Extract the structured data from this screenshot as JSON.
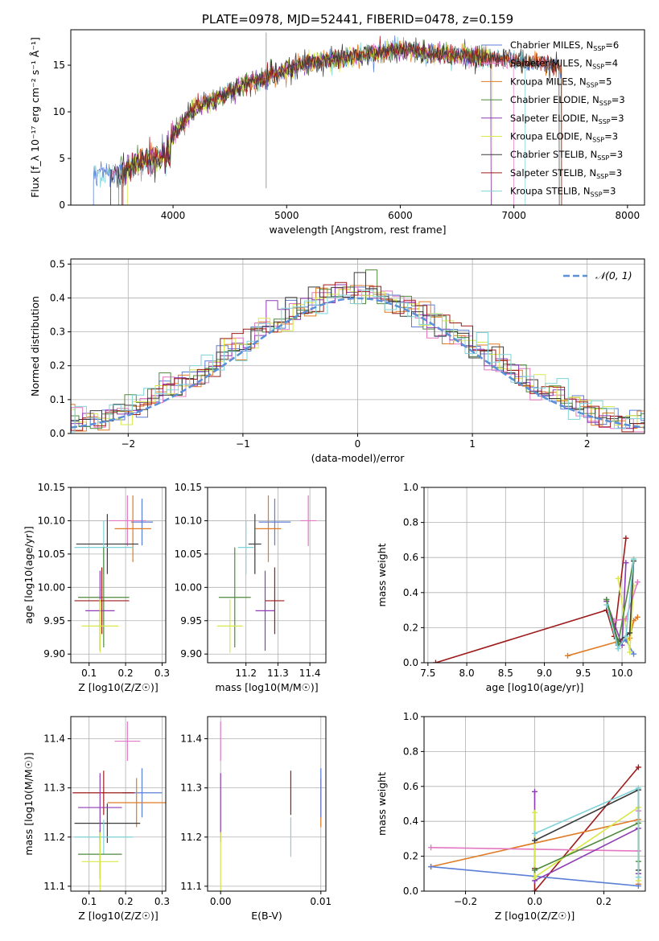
{
  "chart_data": [
    {
      "type": "line",
      "title": "PLATE=0978, MJD=52441, FIBERID=0478, z=0.159",
      "xlabel": "wavelength [Angstrom, rest frame]",
      "ylabel": "Flux [f_λ 10⁻¹⁷ erg cm⁻² s⁻¹ Å⁻¹]",
      "xlim": [
        3100,
        8150
      ],
      "ylim": [
        0,
        18.8
      ],
      "xticks": [
        4000,
        5000,
        6000,
        7000,
        8000
      ],
      "yticks": [
        0,
        5,
        10,
        15
      ],
      "grid": false,
      "legend_position": "top-right",
      "series": [
        {
          "name": "Chabrier MILES, N_SSP=6",
          "color": "#5b7fd6"
        },
        {
          "name": "Salpeter MILES, N_SSP=4",
          "color": "#e377c2"
        },
        {
          "name": "Kroupa MILES, N_SSP=5",
          "color": "#e07b24"
        },
        {
          "name": "Chabrier ELODIE, N_SSP=3",
          "color": "#4f8a3d"
        },
        {
          "name": "Salpeter ELODIE, N_SSP=3",
          "color": "#8e3bb5"
        },
        {
          "name": "Kroupa ELODIE, N_SSP=3",
          "color": "#d8e84a"
        },
        {
          "name": "Chabrier STELIB, N_SSP=3",
          "color": "#3a3a3a"
        },
        {
          "name": "Salpeter STELIB, N_SSP=3",
          "color": "#9e1a1a"
        },
        {
          "name": "Kroupa STELIB, N_SSP=3",
          "color": "#7fd3d8"
        }
      ],
      "continuum": {
        "x": [
          3300,
          3500,
          3700,
          3900,
          4000,
          4200,
          4400,
          4600,
          4800,
          5000,
          5200,
          5400,
          5600,
          5800,
          6000,
          6200,
          6500,
          6800,
          7100,
          7400
        ],
        "y": [
          3.3,
          3.4,
          4.5,
          5.2,
          7.5,
          10.5,
          11.5,
          12.8,
          13.5,
          14.5,
          15.4,
          15.6,
          16.0,
          16.3,
          16.7,
          16.3,
          16.0,
          15.8,
          15.3,
          15.0
        ]
      }
    },
    {
      "type": "bar",
      "xlabel": "(data-model)/error",
      "ylabel": "Normed distribution",
      "xlim": [
        -2.5,
        2.5
      ],
      "ylim": [
        0,
        0.515
      ],
      "xticks": [
        -2,
        -1,
        0,
        1,
        2
      ],
      "yticks": [
        0.0,
        0.1,
        0.2,
        0.3,
        0.4,
        0.5
      ],
      "grid": true,
      "legend": "𝒩(0, 1)",
      "legend_position": "top-right",
      "reference_color": "#5b8fd6"
    },
    {
      "type": "scatter",
      "xlabel": "Z [log10(Z/Z☉)]",
      "ylabel": "age  [log10(age/yr)]",
      "xlim": [
        0.05,
        0.31
      ],
      "ylim": [
        9.887,
        10.15
      ],
      "xticks": [
        0.1,
        0.2,
        0.3
      ],
      "yticks": [
        9.9,
        9.95,
        10.0,
        10.05,
        10.1,
        10.15
      ],
      "grid": true,
      "points": [
        {
          "x": 0.205,
          "y": 10.1,
          "xerr": 0.05,
          "yerr": 0.038,
          "color": "#e377c2"
        },
        {
          "x": 0.245,
          "y": 10.098,
          "xerr": 0.03,
          "yerr": 0.035,
          "color": "#5b7fd6"
        },
        {
          "x": 0.22,
          "y": 10.088,
          "xerr": 0.05,
          "yerr": 0.05,
          "color": "#e07b24"
        },
        {
          "x": 0.15,
          "y": 10.065,
          "xerr": 0.085,
          "yerr": 0.045,
          "color": "#3a3a3a"
        },
        {
          "x": 0.14,
          "y": 10.06,
          "xerr": 0.08,
          "yerr": 0.04,
          "color": "#7fd3d8"
        },
        {
          "x": 0.14,
          "y": 9.985,
          "xerr": 0.07,
          "yerr": 0.075,
          "color": "#4f8a3d"
        },
        {
          "x": 0.135,
          "y": 9.98,
          "xerr": 0.075,
          "yerr": 0.05,
          "color": "#9e1a1a"
        },
        {
          "x": 0.13,
          "y": 9.965,
          "xerr": 0.04,
          "yerr": 0.06,
          "color": "#8e3bb5"
        },
        {
          "x": 0.13,
          "y": 9.942,
          "xerr": 0.05,
          "yerr": 0.04,
          "color": "#d8e84a"
        }
      ]
    },
    {
      "type": "scatter",
      "xlabel": "mass [log10(M/M☉)]",
      "ylabel": "",
      "xlim": [
        11.08,
        11.45
      ],
      "ylim": [
        9.887,
        10.15
      ],
      "xticks": [
        11.2,
        11.3,
        11.4
      ],
      "yticks": [
        9.9,
        9.95,
        10.0,
        10.05,
        10.1,
        10.15
      ],
      "grid": true,
      "points": [
        {
          "x": 11.395,
          "y": 10.1,
          "xerr": 0.025,
          "yerr": 0.038,
          "color": "#e377c2"
        },
        {
          "x": 11.29,
          "y": 10.098,
          "xerr": 0.05,
          "yerr": 0.035,
          "color": "#5b7fd6"
        },
        {
          "x": 11.27,
          "y": 10.088,
          "xerr": 0.04,
          "yerr": 0.05,
          "color": "#e07b24"
        },
        {
          "x": 11.228,
          "y": 10.065,
          "xerr": 0.02,
          "yerr": 0.045,
          "color": "#3a3a3a"
        },
        {
          "x": 11.2,
          "y": 10.06,
          "xerr": 0.025,
          "yerr": 0.04,
          "color": "#7fd3d8"
        },
        {
          "x": 11.165,
          "y": 9.985,
          "xerr": 0.05,
          "yerr": 0.075,
          "color": "#4f8a3d"
        },
        {
          "x": 11.29,
          "y": 9.98,
          "xerr": 0.03,
          "yerr": 0.05,
          "color": "#9e1a1a"
        },
        {
          "x": 11.26,
          "y": 9.965,
          "xerr": 0.03,
          "yerr": 0.06,
          "color": "#8e3bb5"
        },
        {
          "x": 11.15,
          "y": 9.942,
          "xerr": 0.04,
          "yerr": 0.04,
          "color": "#d8e84a"
        }
      ]
    },
    {
      "type": "line",
      "xlabel": "age  [log10(age/yr)]",
      "ylabel": "mass weight",
      "xlim": [
        7.45,
        10.3
      ],
      "ylim": [
        0,
        1.0
      ],
      "xticks": [
        7.5,
        8.0,
        8.5,
        9.0,
        9.5,
        10.0
      ],
      "yticks": [
        0.0,
        0.2,
        0.4,
        0.6,
        0.8,
        1.0
      ],
      "grid": true,
      "series": [
        {
          "color": "#9e1a1a",
          "x": [
            7.6,
            9.8,
            9.9,
            10.05
          ],
          "y": [
            0.0,
            0.3,
            0.15,
            0.71
          ]
        },
        {
          "color": "#e07b24",
          "x": [
            9.3,
            10.1,
            10.15,
            10.2
          ],
          "y": [
            0.04,
            0.14,
            0.24,
            0.26
          ]
        },
        {
          "color": "#5b7fd6",
          "x": [
            9.95,
            10.05,
            10.15
          ],
          "y": [
            0.1,
            0.13,
            0.05
          ]
        },
        {
          "color": "#8e3bb5",
          "x": [
            9.8,
            10.0,
            10.05
          ],
          "y": [
            0.35,
            0.1,
            0.57
          ]
        },
        {
          "color": "#d8e84a",
          "x": [
            9.95,
            10.1,
            10.15
          ],
          "y": [
            0.48,
            0.06,
            0.44
          ]
        },
        {
          "color": "#e377c2",
          "x": [
            9.9,
            10.05,
            10.2
          ],
          "y": [
            0.24,
            0.25,
            0.46
          ]
        },
        {
          "color": "#3a3a3a",
          "x": [
            9.8,
            9.95,
            10.1,
            10.15
          ],
          "y": [
            0.36,
            0.12,
            0.17,
            0.58
          ]
        },
        {
          "color": "#4f8a3d",
          "x": [
            9.8,
            9.95,
            10.15
          ],
          "y": [
            0.36,
            0.11,
            0.59
          ]
        },
        {
          "color": "#7fd3d8",
          "x": [
            9.8,
            9.95,
            10.05,
            10.15
          ],
          "y": [
            0.33,
            0.08,
            0.15,
            0.59
          ]
        }
      ]
    },
    {
      "type": "scatter",
      "xlabel": "Z [log10(Z/Z☉)]",
      "ylabel": "mass [log10(M/M☉)]",
      "xlim": [
        0.05,
        0.31
      ],
      "ylim": [
        11.09,
        11.445
      ],
      "xticks": [
        0.1,
        0.2,
        0.3
      ],
      "yticks": [
        11.1,
        11.2,
        11.3,
        11.4
      ],
      "grid": true,
      "points": [
        {
          "x": 0.205,
          "y": 11.395,
          "xerr": 0.035,
          "yerr": 0.04,
          "color": "#e377c2"
        },
        {
          "x": 0.245,
          "y": 11.29,
          "xerr": 0.055,
          "yerr": 0.05,
          "color": "#5b7fd6"
        },
        {
          "x": 0.23,
          "y": 11.27,
          "xerr": 0.08,
          "yerr": 0.05,
          "color": "#e07b24"
        },
        {
          "x": 0.15,
          "y": 11.228,
          "xerr": 0.09,
          "yerr": 0.04,
          "color": "#3a3a3a"
        },
        {
          "x": 0.14,
          "y": 11.2,
          "xerr": 0.08,
          "yerr": 0.035,
          "color": "#7fd3d8"
        },
        {
          "x": 0.13,
          "y": 11.165,
          "xerr": 0.06,
          "yerr": 0.05,
          "color": "#4f8a3d"
        },
        {
          "x": 0.14,
          "y": 11.29,
          "xerr": 0.085,
          "yerr": 0.045,
          "color": "#9e1a1a"
        },
        {
          "x": 0.13,
          "y": 11.26,
          "xerr": 0.06,
          "yerr": 0.07,
          "color": "#8e3bb5"
        },
        {
          "x": 0.13,
          "y": 11.15,
          "xerr": 0.05,
          "yerr": 0.06,
          "color": "#d8e84a"
        }
      ]
    },
    {
      "type": "scatter",
      "xlabel": "E(B-V)",
      "ylabel": "",
      "xlim": [
        -0.0013,
        0.0105
      ],
      "ylim": [
        11.09,
        11.445
      ],
      "xticks": [
        0.0,
        0.01
      ],
      "yticks": [
        11.1,
        11.2,
        11.3,
        11.4
      ],
      "grid": true,
      "points": [
        {
          "x": 0.0,
          "y": 11.395,
          "yerr": 0.04,
          "color": "#e377c2"
        },
        {
          "x": 0.0,
          "y": 11.26,
          "yerr": 0.07,
          "color": "#8e3bb5"
        },
        {
          "x": 0.0,
          "y": 11.15,
          "yerr": 0.06,
          "color": "#d8e84a"
        },
        {
          "x": 0.007,
          "y": 11.29,
          "yerr": 0.045,
          "color": "#9e1a1a"
        },
        {
          "x": 0.007,
          "y": 11.2,
          "yerr": 0.04,
          "color": "#7fd3d8"
        },
        {
          "x": 0.01,
          "y": 11.27,
          "yerr": 0.05,
          "color": "#e07b24"
        },
        {
          "x": 0.01,
          "y": 11.29,
          "yerr": 0.05,
          "color": "#5b7fd6"
        }
      ]
    },
    {
      "type": "line",
      "xlabel": "Z [log10(Z/Z☉)]",
      "ylabel": "mass weight",
      "xlim": [
        -0.32,
        0.32
      ],
      "ylim": [
        0,
        1.0
      ],
      "xticks": [
        -0.2,
        0.0,
        0.2
      ],
      "yticks": [
        0.0,
        0.2,
        0.4,
        0.6,
        0.8,
        1.0
      ],
      "grid": true,
      "series": [
        {
          "color": "#9e1a1a",
          "x": [
            0.0,
            0.0,
            0.3
          ],
          "y": [
            0.13,
            0.0,
            0.71
          ]
        },
        {
          "color": "#e07b24",
          "x": [
            -0.3,
            0.3,
            0.3
          ],
          "y": [
            0.14,
            0.41,
            0.04
          ]
        },
        {
          "color": "#e377c2",
          "x": [
            -0.3,
            0.3,
            0.3
          ],
          "y": [
            0.25,
            0.23,
            0.46
          ]
        },
        {
          "color": "#5b7fd6",
          "x": [
            -0.3,
            0.3,
            0.3
          ],
          "y": [
            0.14,
            0.03,
            0.1
          ]
        },
        {
          "color": "#8e3bb5",
          "x": [
            0.0,
            0.0,
            0.3,
            0.3
          ],
          "y": [
            0.57,
            0.06,
            0.36,
            0.1
          ]
        },
        {
          "color": "#d8e84a",
          "x": [
            0.0,
            0.0,
            0.3,
            0.3
          ],
          "y": [
            0.45,
            0.08,
            0.48,
            0.06
          ]
        },
        {
          "color": "#3a3a3a",
          "x": [
            0.0,
            0.3,
            0.3
          ],
          "y": [
            0.29,
            0.58,
            0.12
          ]
        },
        {
          "color": "#4f8a3d",
          "x": [
            0.0,
            0.3,
            0.3
          ],
          "y": [
            0.12,
            0.39,
            0.17
          ]
        },
        {
          "color": "#7fd3d8",
          "x": [
            0.0,
            0.3,
            0.3
          ],
          "y": [
            0.33,
            0.59,
            0.08
          ]
        }
      ]
    }
  ]
}
